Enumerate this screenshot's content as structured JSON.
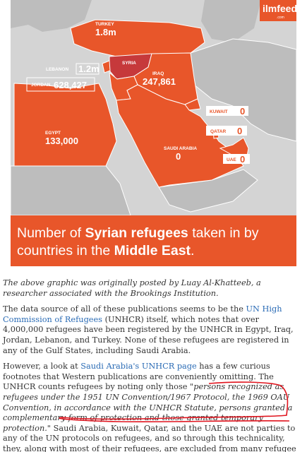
{
  "infographic": {
    "brand": "ilmfeed",
    "brand_suffix": ".com",
    "countries": [
      {
        "name": "TURKEY",
        "refugees": "1.8m"
      },
      {
        "name": "LEBANON",
        "refugees": "1.2m"
      },
      {
        "name": "SYRIA"
      },
      {
        "name": "JORDAN",
        "refugees": "628,427"
      },
      {
        "name": "IRAQ",
        "refugees": "247,861"
      },
      {
        "name": "KUWAIT",
        "refugees": "0"
      },
      {
        "name": "QATAR",
        "refugees": "0"
      },
      {
        "name": "EGYPT",
        "refugees": "133,000"
      },
      {
        "name": "SAUDI ARABIA",
        "refugees": "0"
      },
      {
        "name": "UAE",
        "refugees": "0"
      }
    ],
    "caption": [
      "Number of ",
      "Syrian refugees",
      " taken in by countries in the ",
      "Middle East",
      "."
    ]
  },
  "article": {
    "paragraphs": [
      [
        "The above graphic was originally posted by Luay Al-Khatteeb, a researcher associated with the Brookings Institution."
      ],
      [
        "The data source of all of these publications seems to be the ",
        "UN High Commission of Refugees",
        " (UNHCR) itself, which notes that over 4,000,000 refugees have been registered by the UNHCR in Egypt, Iraq, Jordan, Lebanon, and Turkey. None of these refugees are registered in any of the Gulf States, including Saudi Arabia."
      ],
      [
        "However, a look at ",
        "Saudi Arabia's UNHCR page",
        " has a few curious footnotes that Western publications are conveniently omitting. The UNHCR counts refugees by noting only those ",
        "\"persons recognized as refugees under the 1951 UN Convention/1967 Protocol, the 1969 OAU Convention, in accordance with the UNHCR Statute, persons granted a complementary form of protection and those granted temporary protection.\"",
        " Saudi Arabia, Kuwait, Qatar, and the UAE are not parties to any of the UN protocols on refugees, and so through this technicality, they, along with most of their refugees, are excluded from many refugee counting mechanisms."
      ]
    ]
  }
}
